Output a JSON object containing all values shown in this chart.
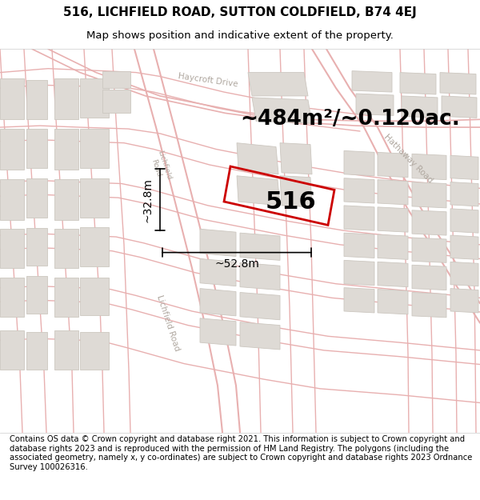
{
  "title_line1": "516, LICHFIELD ROAD, SUTTON COLDFIELD, B74 4EJ",
  "title_line2": "Map shows position and indicative extent of the property.",
  "footer_text": "Contains OS data © Crown copyright and database right 2021. This information is subject to Crown copyright and database rights 2023 and is reproduced with the permission of HM Land Registry. The polygons (including the associated geometry, namely x, y co-ordinates) are subject to Crown copyright and database rights 2023 Ordnance Survey 100026316.",
  "area_label": "~484m²/~0.120ac.",
  "number_label": "516",
  "dim_width": "~52.8m",
  "dim_height": "~32.8m",
  "map_bg": "#f5f2ee",
  "road_color": "#e8b0b0",
  "road_lw_main": 1.2,
  "building_face": "#dedad5",
  "building_edge": "#ccc7c0",
  "property_color": "#cc0000",
  "property_lw": 2.0,
  "dim_color": "#000000",
  "title_fs": 11,
  "sub_fs": 9.5,
  "footer_fs": 7.2,
  "area_fs": 19,
  "num_fs": 22,
  "dim_fs": 10
}
